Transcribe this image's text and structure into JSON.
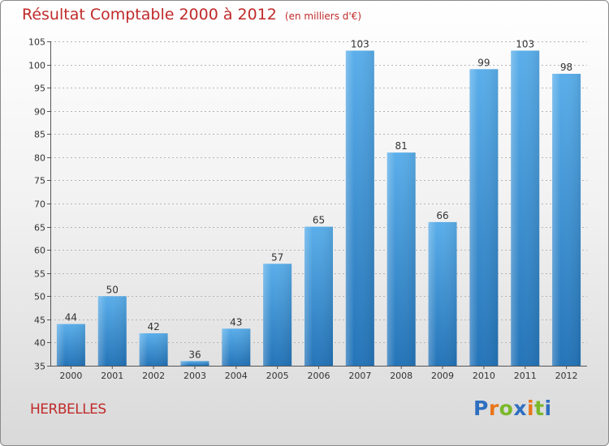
{
  "chart_data": {
    "type": "bar",
    "title": "Résultat Comptable 2000 à 2012",
    "subtitle": "(en milliers d'€)",
    "categories": [
      "2000",
      "2001",
      "2002",
      "2003",
      "2004",
      "2005",
      "2006",
      "2007",
      "2008",
      "2009",
      "2010",
      "2011",
      "2012"
    ],
    "values": [
      44,
      50,
      42,
      36,
      43,
      57,
      65,
      103,
      81,
      66,
      99,
      103,
      98
    ],
    "ylim": [
      35,
      105
    ],
    "yticks": [
      35,
      40,
      45,
      50,
      55,
      60,
      65,
      70,
      75,
      80,
      85,
      90,
      95,
      100,
      105
    ],
    "grid": true,
    "bar_color": "#4a9fe0"
  },
  "footer": {
    "commune": "HERBELLES",
    "logo": [
      "P",
      "r",
      "o",
      "x",
      "i",
      "t",
      "i"
    ]
  }
}
